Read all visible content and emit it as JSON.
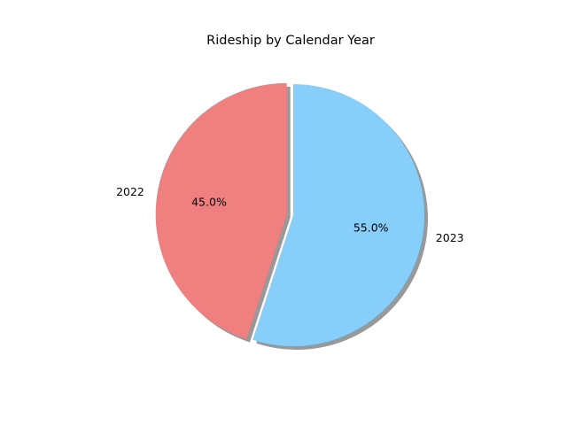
{
  "chart_data": {
    "type": "pie",
    "title": "Rideship by Calendar Year",
    "labels": [
      "2022",
      "2023"
    ],
    "values": [
      45.0,
      55.0
    ],
    "percent_labels": [
      "45.0%",
      "55.0%"
    ],
    "colors": [
      "#f08080",
      "#87cefa"
    ],
    "explode": [
      0.05,
      0
    ],
    "shadow": true,
    "start_angle_deg": 90,
    "direction": "counterclockwise"
  }
}
